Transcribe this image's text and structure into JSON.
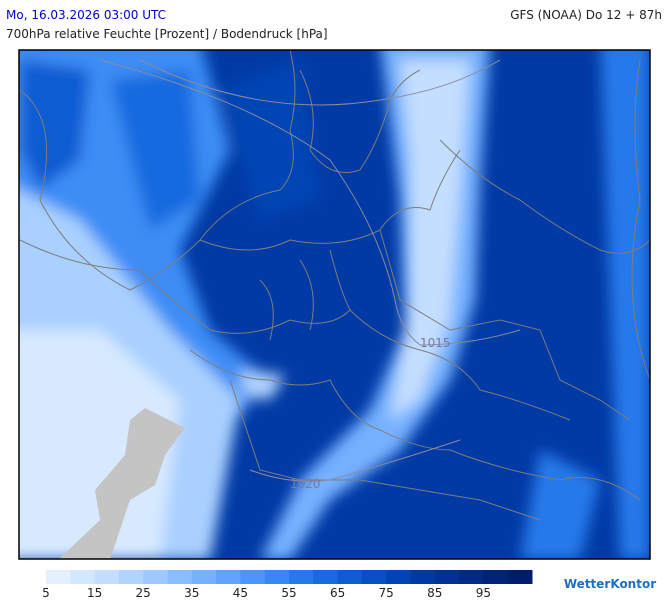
{
  "header": {
    "date": "Mo, 16.03.2026 03:00 UTC",
    "model": "GFS (NOAA) Do 12 + 87h",
    "subtitle": "700hPa relative Feuchte [Prozent] / Bodendruck [hPa]"
  },
  "isobars": [
    "1015",
    "1020"
  ],
  "colorbar": {
    "lim": [
      5,
      105
    ],
    "ticks": [
      5,
      15,
      25,
      35,
      45,
      55,
      65,
      75,
      85,
      95
    ],
    "colors": [
      "#e3f0ff",
      "#d3e7ff",
      "#c3deff",
      "#b1d4ff",
      "#9ec9ff",
      "#8abdff",
      "#76b1ff",
      "#61a4ff",
      "#4c96fb",
      "#3888f3",
      "#2679ea",
      "#176adf",
      "#0c5cd2",
      "#064fc4",
      "#0344b4",
      "#013aa5",
      "#013196",
      "#012987",
      "#012279",
      "#011c6c"
    ]
  },
  "logo": "WetterKontor"
}
